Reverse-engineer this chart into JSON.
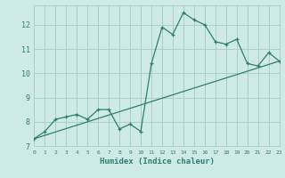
{
  "title": "",
  "xlabel": "Humidex (Indice chaleur)",
  "background_color": "#ceeae6",
  "line_color": "#2e7d72",
  "grid_color": "#aacfca",
  "curve_x": [
    0,
    1,
    2,
    3,
    4,
    5,
    6,
    7,
    8,
    9,
    10,
    11,
    12,
    13,
    14,
    15,
    16,
    17,
    18,
    19,
    20,
    21,
    22,
    23
  ],
  "curve_y": [
    7.3,
    7.6,
    8.1,
    8.2,
    8.3,
    8.1,
    8.5,
    8.5,
    7.7,
    7.9,
    7.6,
    10.4,
    11.9,
    11.6,
    12.5,
    12.2,
    12.0,
    11.3,
    11.2,
    11.4,
    10.4,
    10.3,
    10.85,
    10.5
  ],
  "trend_x": [
    0,
    23
  ],
  "trend_y": [
    7.3,
    10.5
  ],
  "xlim": [
    0,
    23
  ],
  "ylim": [
    7,
    12.8
  ],
  "yticks": [
    7,
    8,
    9,
    10,
    11,
    12
  ],
  "xticks": [
    0,
    1,
    2,
    3,
    4,
    5,
    6,
    7,
    8,
    9,
    10,
    11,
    12,
    13,
    14,
    15,
    16,
    17,
    18,
    19,
    20,
    21,
    22,
    23
  ]
}
